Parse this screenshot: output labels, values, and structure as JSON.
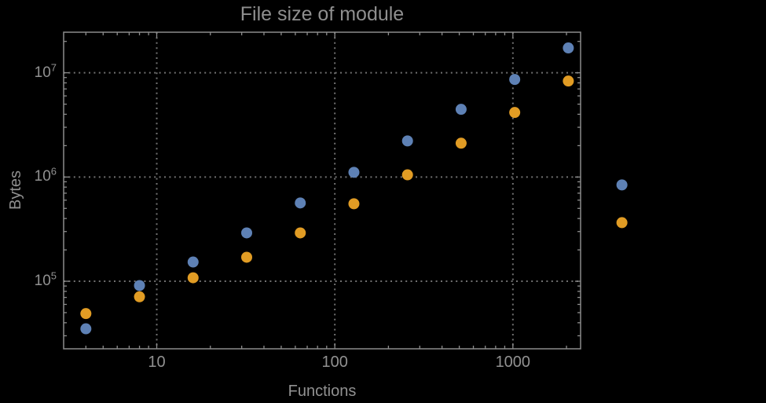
{
  "page": {
    "background": "#000000",
    "text_color": "#919191",
    "frame_color": "#8c8c8c",
    "gridline_color": "#717171"
  },
  "chart_data": {
    "type": "scatter",
    "title": "File size of module",
    "xlabel": "Functions",
    "ylabel": "Bytes",
    "x_scale": "log",
    "y_scale": "log",
    "xlim": [
      3,
      2400
    ],
    "ylim": [
      22500,
      24500000
    ],
    "x_major_ticks": [
      10,
      100,
      1000
    ],
    "x_major_tick_labels": [
      "10",
      "100",
      "1000"
    ],
    "y_major_ticks": [
      100000,
      1000000,
      10000000
    ],
    "y_major_tick_base": "10",
    "y_major_tick_exponents": [
      "5",
      "6",
      "7"
    ],
    "grid": {
      "style": "dotted",
      "on_major_ticks": true
    },
    "legend": {
      "visible": false
    },
    "points_clipped_to_frame": false,
    "marker": {
      "shape": "circle",
      "radius_px": 7
    },
    "x": [
      4,
      8,
      16,
      32,
      64,
      128,
      256,
      512,
      1024,
      2048,
      4096
    ],
    "series": [
      {
        "name": "blue",
        "color": "#5e81b5",
        "values": [
          35000,
          91000,
          153000,
          291000,
          564000,
          1110000,
          2220000,
          4460000,
          8630000,
          17300000,
          840000
        ]
      },
      {
        "name": "orange",
        "color": "#e19c24",
        "values": [
          49000,
          71000,
          108000,
          170000,
          291000,
          554000,
          1050000,
          2110000,
          4160000,
          8330000,
          365000
        ]
      }
    ]
  }
}
